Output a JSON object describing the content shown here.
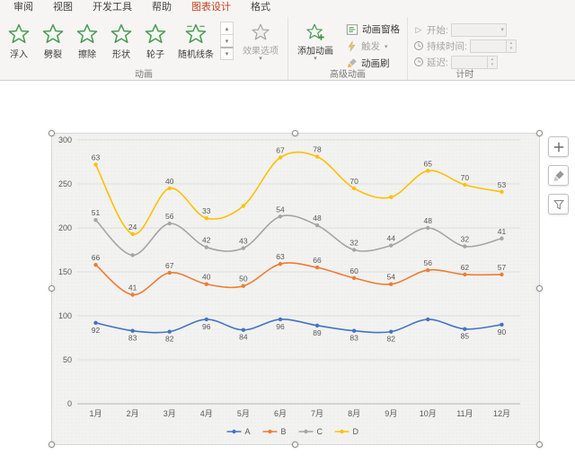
{
  "tabs": [
    {
      "label": "审阅"
    },
    {
      "label": "视图"
    },
    {
      "label": "开发工具"
    },
    {
      "label": "帮助"
    },
    {
      "label": "图表设计"
    },
    {
      "label": "格式"
    }
  ],
  "ribbon": {
    "animation_group": {
      "label": "动画",
      "gallery": [
        {
          "label": "浮入"
        },
        {
          "label": "劈裂"
        },
        {
          "label": "擦除"
        },
        {
          "label": "形状"
        },
        {
          "label": "轮子"
        },
        {
          "label": "随机线条"
        }
      ],
      "effect_options_label": "效果选项"
    },
    "advanced_group": {
      "label": "高级动画",
      "add_animation_label": "添加动画",
      "animation_pane_label": "动画窗格",
      "trigger_label": "触发",
      "animation_painter_label": "动画刷"
    },
    "timing_group": {
      "label": "计时",
      "start_label": "开始:",
      "start_value": "",
      "duration_label": "持续时间:",
      "duration_value": "",
      "delay_label": "延迟:",
      "delay_value": ""
    }
  },
  "colors": {
    "contextual_tab": "#c0431f",
    "star_green": "#4c9a52",
    "series_a": "#4472c4",
    "series_b": "#ed7d31",
    "series_c": "#a5a5a5",
    "series_d": "#ffc000"
  },
  "chart_data": {
    "type": "line",
    "stacked": true,
    "smooth": true,
    "grid": true,
    "legend_position": "bottom",
    "categories": [
      "1月",
      "2月",
      "3月",
      "4月",
      "5月",
      "6月",
      "7月",
      "8月",
      "9月",
      "10月",
      "11月",
      "12月"
    ],
    "ylim": [
      0,
      300
    ],
    "ytick": 50,
    "series": [
      {
        "name": "A",
        "color": "#4472c4",
        "label_side": "below",
        "values": [
          92,
          83,
          82,
          96,
          84,
          96,
          89,
          83,
          82,
          96,
          85,
          90
        ],
        "labels": [
          92,
          83,
          82,
          96,
          84,
          96,
          89,
          83,
          82,
          null,
          85,
          90
        ]
      },
      {
        "name": "B",
        "color": "#ed7d31",
        "values": [
          66,
          41,
          67,
          40,
          50,
          63,
          66,
          60,
          54,
          56,
          62,
          57
        ],
        "labels": [
          66,
          41,
          67,
          40,
          50,
          63,
          66,
          60,
          54,
          56,
          62,
          57
        ]
      },
      {
        "name": "C",
        "color": "#a5a5a5",
        "values": [
          51,
          45,
          56,
          42,
          43,
          54,
          48,
          32,
          44,
          48,
          32,
          41
        ],
        "labels": [
          51,
          null,
          56,
          42,
          43,
          54,
          48,
          32,
          44,
          48,
          32,
          41
        ]
      },
      {
        "name": "D",
        "color": "#ffc000",
        "values": [
          63,
          24,
          40,
          33,
          48,
          67,
          78,
          70,
          55,
          65,
          70,
          53
        ],
        "labels": [
          63,
          24,
          40,
          33,
          null,
          67,
          78,
          70,
          null,
          65,
          70,
          53
        ]
      }
    ]
  }
}
